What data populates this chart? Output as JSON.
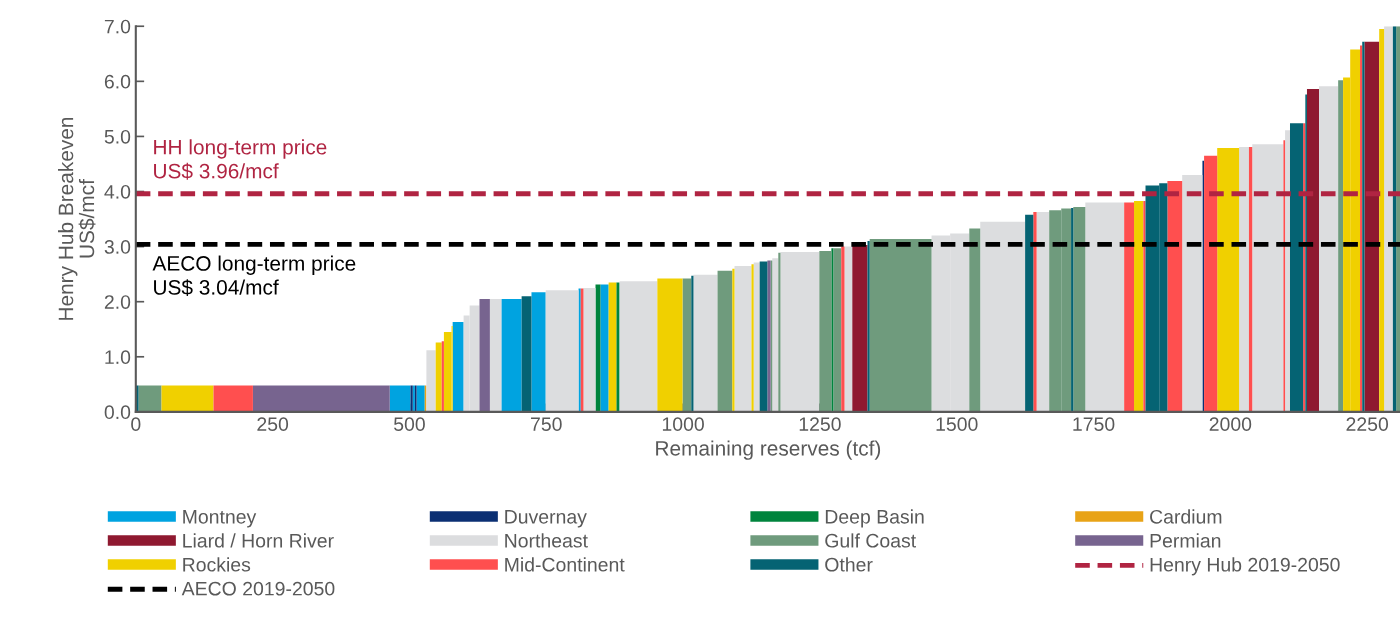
{
  "chart_data": {
    "type": "histogram",
    "xlabel": "Remaining reserves (tcf)",
    "ylabel": "Henry Hub Breakeven\nUS$/mcf",
    "bins": [
      0,
      5,
      47,
      142,
      214,
      464,
      502,
      506,
      510,
      513,
      528,
      531,
      548,
      559,
      563,
      577,
      579,
      599,
      610,
      628,
      647,
      668,
      705,
      723,
      749,
      809,
      813,
      818,
      840,
      849,
      864,
      878,
      884,
      953,
      999,
      1015,
      1019,
      1063,
      1090,
      1094,
      1125,
      1129,
      1140,
      1154,
      1160,
      1163,
      1174,
      1178,
      1249,
      1271,
      1275,
      1289,
      1295,
      1309,
      1337,
      1341,
      1454,
      1488,
      1523,
      1543,
      1625,
      1640,
      1646,
      1669,
      1691,
      1709,
      1713,
      1735,
      1806,
      1824,
      1841,
      1845,
      1870,
      1885,
      1912,
      1949,
      1952,
      1976,
      2016,
      2034,
      2040,
      2097,
      2100,
      2109,
      2133,
      2137,
      2140,
      2162,
      2197,
      2206,
      2219,
      2237,
      2241,
      2245,
      2272,
      2281,
      2297,
      2303,
      2310
    ],
    "series": [
      {
        "name": "Montney",
        "color": "#00a3e0",
        "values": [
          null,
          null,
          null,
          null,
          null,
          0.48,
          null,
          0.48,
          null,
          0.48,
          null,
          null,
          null,
          null,
          null,
          null,
          1.63,
          null,
          null,
          null,
          null,
          2.05,
          null,
          2.17,
          null,
          2.24,
          null,
          null,
          null,
          2.31,
          null,
          null,
          null,
          null,
          null,
          null,
          null,
          null,
          null,
          null,
          null,
          null,
          null,
          null,
          null,
          null,
          null,
          null,
          null,
          null,
          null,
          null,
          null,
          null,
          null,
          null,
          null,
          null,
          null,
          null,
          null,
          null,
          null,
          null,
          null,
          null,
          null,
          null,
          null,
          null,
          null,
          null,
          null,
          null,
          null,
          null,
          null,
          null,
          null,
          null,
          null,
          null,
          null,
          null,
          null,
          null,
          null,
          null,
          null,
          null,
          null,
          null,
          null,
          null,
          null,
          null,
          null,
          null
        ]
      },
      {
        "name": "Duvernay",
        "color": "#0b2f73",
        "values": [
          null,
          null,
          null,
          null,
          null,
          null,
          0.48,
          null,
          0.48,
          null,
          null,
          null,
          null,
          null,
          null,
          null,
          null,
          null,
          null,
          null,
          null,
          null,
          null,
          null,
          null,
          null,
          null,
          null,
          null,
          null,
          null,
          null,
          null,
          null,
          null,
          null,
          null,
          null,
          null,
          null,
          null,
          null,
          null,
          null,
          null,
          null,
          null,
          null,
          null,
          null,
          null,
          null,
          null,
          null,
          null,
          null,
          null,
          null,
          null,
          null,
          null,
          null,
          null,
          null,
          null,
          null,
          null,
          null,
          null,
          null,
          null,
          null,
          null,
          null,
          null,
          4.56,
          null,
          null,
          null,
          null,
          null,
          null,
          null,
          null,
          null,
          null,
          null,
          null,
          null,
          null,
          null,
          null,
          null,
          null,
          null,
          null,
          null,
          null
        ]
      },
      {
        "name": "Deep Basin",
        "color": "#00843d",
        "values": [
          null,
          null,
          null,
          null,
          null,
          null,
          null,
          null,
          null,
          null,
          null,
          null,
          null,
          null,
          null,
          null,
          null,
          null,
          null,
          null,
          null,
          null,
          null,
          null,
          null,
          null,
          null,
          null,
          2.31,
          null,
          null,
          2.35,
          null,
          null,
          null,
          null,
          null,
          null,
          null,
          null,
          null,
          null,
          null,
          null,
          null,
          null,
          null,
          null,
          null,
          2.97,
          null,
          null,
          null,
          null,
          null,
          null,
          null,
          null,
          null,
          null,
          null,
          null,
          null,
          null,
          null,
          null,
          null,
          null,
          null,
          null,
          null,
          null,
          null,
          null,
          null,
          null,
          null,
          null,
          null,
          null,
          null,
          null,
          null,
          null,
          null,
          null,
          null,
          null,
          null,
          null,
          null,
          null,
          null,
          null,
          null,
          null,
          null,
          null
        ]
      },
      {
        "name": "Cardium",
        "color": "#e8a317",
        "values": [
          null,
          null,
          null,
          null,
          null,
          null,
          null,
          null,
          null,
          null,
          0.48,
          null,
          null,
          null,
          null,
          null,
          null,
          null,
          null,
          null,
          null,
          null,
          null,
          null,
          null,
          null,
          null,
          null,
          null,
          null,
          null,
          null,
          null,
          null,
          null,
          null,
          null,
          null,
          null,
          null,
          null,
          null,
          null,
          null,
          null,
          null,
          null,
          null,
          null,
          null,
          null,
          null,
          null,
          null,
          null,
          null,
          null,
          null,
          null,
          null,
          null,
          null,
          null,
          null,
          null,
          null,
          null,
          null,
          null,
          null,
          null,
          null,
          null,
          null,
          null,
          null,
          null,
          null,
          null,
          null,
          null,
          null,
          null,
          null,
          null,
          null,
          null,
          null,
          null,
          null,
          null,
          null,
          null,
          null,
          null,
          null,
          null,
          null
        ]
      },
      {
        "name": "Liard / Horn River",
        "color": "#8f1930",
        "values": [
          null,
          null,
          null,
          null,
          null,
          null,
          null,
          null,
          null,
          null,
          null,
          null,
          null,
          null,
          null,
          null,
          null,
          null,
          null,
          null,
          null,
          null,
          null,
          null,
          null,
          null,
          null,
          null,
          null,
          null,
          null,
          null,
          null,
          null,
          null,
          null,
          null,
          null,
          null,
          null,
          null,
          null,
          null,
          null,
          null,
          null,
          null,
          null,
          null,
          null,
          null,
          null,
          null,
          3.03,
          null,
          null,
          null,
          null,
          null,
          null,
          null,
          null,
          null,
          null,
          null,
          null,
          null,
          null,
          null,
          null,
          null,
          null,
          null,
          null,
          null,
          null,
          null,
          null,
          null,
          null,
          null,
          null,
          null,
          null,
          null,
          null,
          5.86,
          null,
          null,
          null,
          null,
          null,
          null,
          6.72,
          null,
          null,
          null,
          null
        ]
      },
      {
        "name": "Northeast",
        "color": "#dcdddf",
        "values": [
          null,
          null,
          null,
          null,
          null,
          null,
          null,
          null,
          null,
          null,
          null,
          1.12,
          null,
          null,
          null,
          null,
          null,
          1.75,
          1.93,
          null,
          2.05,
          null,
          null,
          null,
          2.21,
          null,
          null,
          2.25,
          null,
          null,
          null,
          null,
          2.37,
          null,
          null,
          null,
          2.49,
          null,
          null,
          2.65,
          null,
          2.71,
          null,
          null,
          null,
          2.79,
          null,
          2.9,
          null,
          null,
          null,
          null,
          3.0,
          null,
          null,
          null,
          3.2,
          3.24,
          null,
          3.45,
          null,
          null,
          3.63,
          null,
          null,
          null,
          null,
          3.8,
          null,
          null,
          null,
          null,
          null,
          null,
          4.3,
          null,
          null,
          null,
          4.81,
          null,
          4.86,
          null,
          5.11,
          null,
          null,
          null,
          null,
          5.91,
          null,
          null,
          null,
          null,
          null,
          null,
          null,
          7.0,
          null,
          null
        ]
      },
      {
        "name": "Gulf Coast",
        "color": "#6f9b7d",
        "values": [
          null,
          0.48,
          null,
          null,
          null,
          null,
          null,
          null,
          null,
          null,
          null,
          null,
          null,
          null,
          null,
          null,
          null,
          null,
          null,
          null,
          null,
          null,
          null,
          null,
          null,
          null,
          null,
          null,
          null,
          null,
          null,
          null,
          null,
          null,
          2.42,
          null,
          null,
          2.56,
          null,
          null,
          null,
          null,
          null,
          null,
          2.75,
          null,
          2.89,
          null,
          2.92,
          null,
          2.97,
          null,
          null,
          null,
          null,
          3.14,
          null,
          null,
          3.33,
          null,
          null,
          null,
          null,
          3.66,
          3.69,
          null,
          3.72,
          null,
          null,
          null,
          null,
          null,
          null,
          null,
          null,
          null,
          null,
          null,
          null,
          null,
          null,
          null,
          null,
          null,
          null,
          null,
          null,
          null,
          6.02,
          null,
          null,
          null,
          null,
          null,
          null,
          null,
          null,
          7.0
        ]
      },
      {
        "name": "Permian",
        "color": "#77648f",
        "values": [
          null,
          null,
          null,
          null,
          0.48,
          null,
          null,
          null,
          null,
          null,
          null,
          null,
          null,
          null,
          null,
          null,
          null,
          null,
          null,
          2.05,
          null,
          null,
          null,
          null,
          null,
          null,
          null,
          null,
          null,
          null,
          null,
          null,
          null,
          null,
          null,
          null,
          null,
          null,
          null,
          null,
          null,
          null,
          null,
          2.75,
          null,
          null,
          null,
          null,
          null,
          null,
          null,
          null,
          null,
          null,
          null,
          null,
          null,
          null,
          null,
          null,
          null,
          null,
          null,
          null,
          null,
          null,
          null,
          null,
          null,
          null,
          null,
          null,
          null,
          null,
          null,
          null,
          null,
          null,
          null,
          null,
          null,
          null,
          null,
          null,
          null,
          null,
          null,
          null,
          null,
          null,
          null,
          null,
          null,
          null,
          null,
          null,
          null,
          null
        ]
      },
      {
        "name": "Rockies",
        "color": "#f0d000",
        "values": [
          null,
          null,
          0.48,
          null,
          null,
          null,
          null,
          null,
          null,
          null,
          null,
          null,
          1.26,
          null,
          1.45,
          1.56,
          null,
          null,
          null,
          null,
          null,
          null,
          null,
          null,
          null,
          null,
          null,
          null,
          null,
          null,
          2.35,
          null,
          null,
          2.42,
          null,
          null,
          null,
          null,
          2.6,
          null,
          2.68,
          null,
          null,
          null,
          null,
          null,
          null,
          null,
          null,
          null,
          null,
          null,
          null,
          null,
          null,
          null,
          null,
          null,
          null,
          null,
          null,
          null,
          null,
          null,
          null,
          null,
          null,
          null,
          null,
          3.83,
          null,
          null,
          null,
          null,
          null,
          null,
          null,
          4.79,
          null,
          null,
          null,
          null,
          null,
          null,
          null,
          null,
          null,
          null,
          null,
          6.07,
          6.58,
          null,
          null,
          null,
          6.95,
          null,
          null,
          null
        ]
      },
      {
        "name": "Mid-Continent",
        "color": "#ff4f4f",
        "values": [
          null,
          null,
          null,
          0.48,
          null,
          null,
          null,
          null,
          null,
          null,
          null,
          null,
          null,
          1.28,
          null,
          null,
          null,
          null,
          null,
          null,
          null,
          null,
          null,
          null,
          null,
          null,
          2.24,
          null,
          null,
          null,
          null,
          null,
          null,
          null,
          null,
          null,
          null,
          null,
          null,
          null,
          null,
          null,
          null,
          null,
          null,
          null,
          null,
          null,
          null,
          null,
          null,
          3.0,
          null,
          null,
          null,
          null,
          null,
          null,
          null,
          null,
          null,
          3.63,
          null,
          null,
          null,
          null,
          null,
          null,
          3.8,
          null,
          3.83,
          null,
          null,
          4.19,
          null,
          null,
          4.65,
          null,
          null,
          4.81,
          null,
          4.93,
          null,
          null,
          5.24,
          null,
          null,
          null,
          null,
          null,
          null,
          6.65,
          null,
          null,
          null,
          null,
          null,
          null
        ]
      },
      {
        "name": "Other",
        "color": "#056373",
        "values": [
          0.48,
          null,
          null,
          null,
          null,
          null,
          null,
          null,
          null,
          null,
          null,
          null,
          null,
          null,
          null,
          null,
          null,
          null,
          null,
          null,
          null,
          null,
          2.1,
          null,
          null,
          null,
          null,
          null,
          null,
          null,
          null,
          null,
          null,
          null,
          null,
          2.47,
          null,
          null,
          null,
          null,
          null,
          null,
          2.73,
          null,
          null,
          null,
          null,
          null,
          null,
          null,
          null,
          null,
          null,
          null,
          3.1,
          null,
          null,
          null,
          null,
          null,
          3.58,
          null,
          null,
          null,
          null,
          3.7,
          null,
          null,
          null,
          null,
          null,
          4.11,
          4.15,
          null,
          null,
          null,
          null,
          null,
          null,
          null,
          null,
          null,
          null,
          5.24,
          null,
          5.76,
          null,
          null,
          null,
          null,
          null,
          null,
          6.72,
          null,
          null,
          null,
          7.0,
          null
        ]
      }
    ],
    "ref_lines": [
      {
        "axis": "y",
        "value": 3.96,
        "label": "Henry Hub 2019-2050",
        "color": "#b02442",
        "line_style": "dashed"
      },
      {
        "axis": "y",
        "value": 3.04,
        "label": "AECO 2019-2050",
        "color": "#000000",
        "line_style": "dashed"
      }
    ],
    "annotations": [
      {
        "text": "HH long-term price\nUS$ 3.96/mcf",
        "x": 0,
        "y": 3.96
      },
      {
        "text": "AECO long-term price\nUS$ 3.04/mcf",
        "x": 0,
        "y": 3.04
      }
    ],
    "xlim": [
      0,
      2310
    ],
    "xticks": [
      0,
      250,
      500,
      750,
      1000,
      1250,
      1500,
      1750,
      2000,
      2250
    ],
    "ylim": [
      0,
      7.0
    ],
    "yticks": [
      {
        "value": 0,
        "label": "0.0"
      },
      {
        "value": 1,
        "label": "1.0"
      },
      {
        "value": 2,
        "label": "2.0"
      },
      {
        "value": 3,
        "label": "3.0"
      },
      {
        "value": 4,
        "label": "4.0"
      },
      {
        "value": 5,
        "label": "5.0"
      },
      {
        "value": 6,
        "label": "6.0"
      },
      {
        "value": 7,
        "label": "7.0"
      }
    ],
    "grid": false,
    "legend": "bottom"
  }
}
